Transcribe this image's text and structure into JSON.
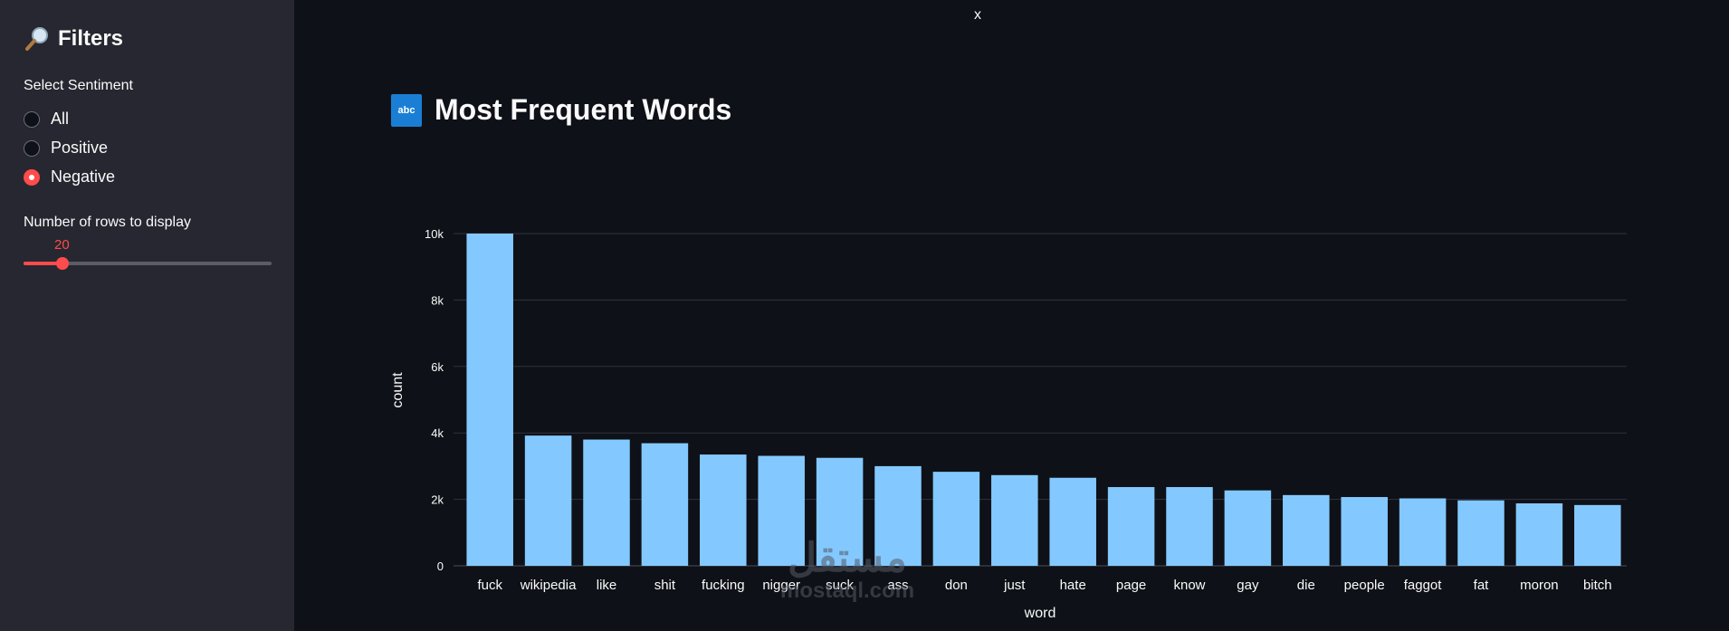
{
  "sidebar": {
    "title": "Filters",
    "sentiment_label": "Select Sentiment",
    "options": [
      "All",
      "Positive",
      "Negative"
    ],
    "selected": "Negative",
    "rows_label": "Number of rows to display",
    "rows_value": "20"
  },
  "close_label": "x",
  "main": {
    "title": "Most Frequent Words",
    "badge": "abc"
  },
  "chart_data": {
    "type": "bar",
    "xlabel": "word",
    "ylabel": "count",
    "ylim": [
      0,
      10000
    ],
    "y_ticks": [
      "0",
      "2k",
      "4k",
      "6k",
      "8k",
      "10k"
    ],
    "grid": true,
    "bar_color": "#83c9ff",
    "categories": [
      "fuck",
      "wikipedia",
      "like",
      "shit",
      "fucking",
      "nigger",
      "suck",
      "ass",
      "don",
      "just",
      "hate",
      "page",
      "know",
      "gay",
      "die",
      "people",
      "faggot",
      "fat",
      "moron",
      "bitch"
    ],
    "values": [
      10000,
      3920,
      3800,
      3690,
      3350,
      3310,
      3250,
      3000,
      2830,
      2730,
      2650,
      2370,
      2370,
      2270,
      2130,
      2070,
      2030,
      1970,
      1880,
      1830
    ]
  },
  "watermark": {
    "arabic": "مستقل",
    "latin": "mostaql.com"
  },
  "colors": {
    "accent": "#ff4b4b",
    "sidebar_bg": "#262730",
    "page_bg": "#0e1117"
  }
}
